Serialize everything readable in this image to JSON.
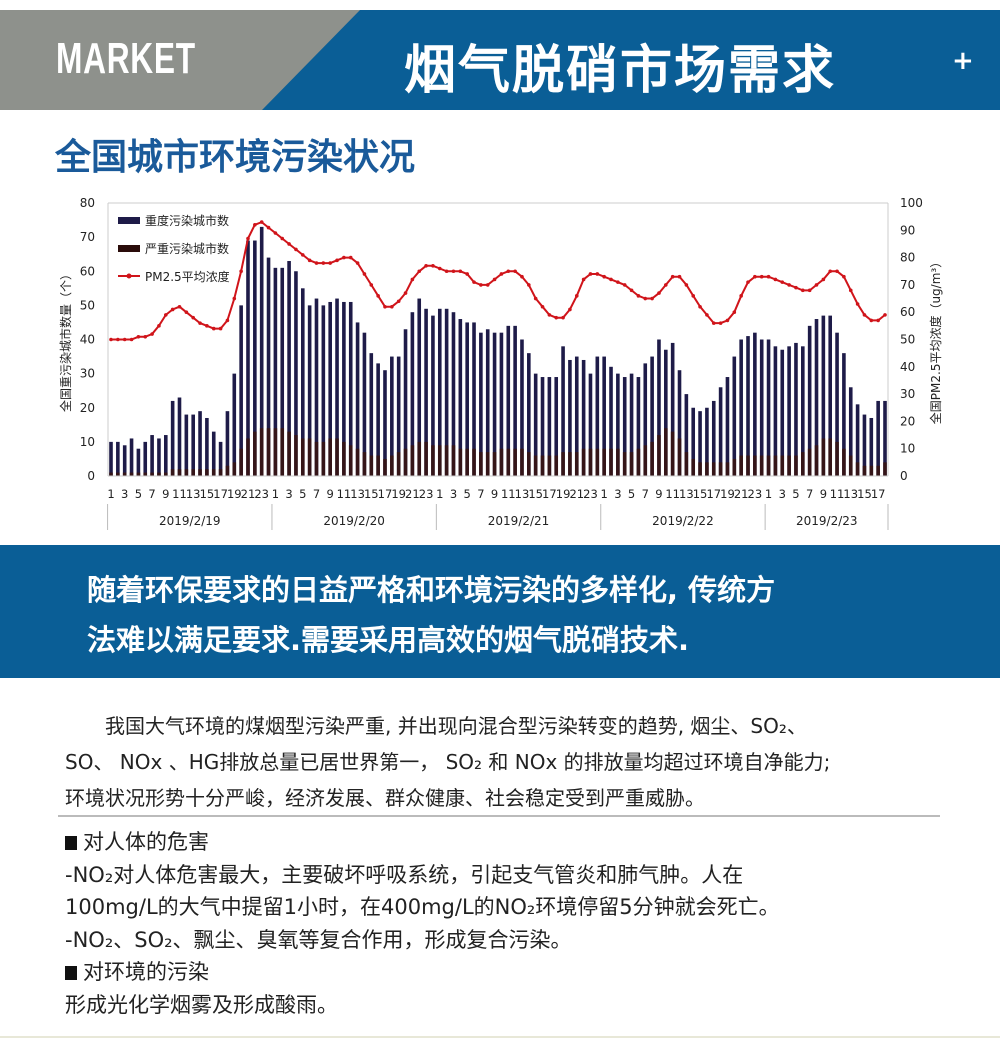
{
  "header": {
    "market_label": "MARKET",
    "title": "烟气脱硝市场需求",
    "plus_icon": "plus"
  },
  "subtitle": "全国城市环境污染状况",
  "colors": {
    "brand_blue": "#0a5e96",
    "gray": "#8e918c",
    "heavy_bar": "#1e1b48",
    "severe_bar": "#3a1410",
    "pm25_line": "#d0141a"
  },
  "chart_data": {
    "type": "bar+line",
    "ylabel_left": "全国重污染城市数量（个）",
    "ylabel_right": "全国PM2.5平均浓度（ug/m³）",
    "ylim_left": [
      0,
      80
    ],
    "ylim_right": [
      0,
      100
    ],
    "yticks_left": [
      "0",
      "10",
      "20",
      "30",
      "40",
      "50",
      "60",
      "70",
      "80"
    ],
    "yticks_right": [
      "0",
      "10",
      "20",
      "30",
      "40",
      "50",
      "60",
      "70",
      "80",
      "90",
      "100"
    ],
    "legend_placement": "top-left",
    "legend": [
      "重度污染城市数",
      "严重污染城市数",
      "PM2.5平均浓度"
    ],
    "days": [
      {
        "date": "2019/2/19",
        "hours": 24
      },
      {
        "date": "2019/2/20",
        "hours": 24
      },
      {
        "date": "2019/2/21",
        "hours": 24
      },
      {
        "date": "2019/2/22",
        "hours": 24
      },
      {
        "date": "2019/2/23",
        "hours": 18
      }
    ],
    "series": [
      {
        "name": "重度污染城市数",
        "type": "bar",
        "axis": "left",
        "values": [
          10,
          10,
          9,
          11,
          8,
          10,
          12,
          11,
          12,
          22,
          23,
          18,
          18,
          19,
          17,
          13,
          10,
          19,
          30,
          50,
          69,
          69,
          73,
          64,
          61,
          61,
          63,
          60,
          55,
          50,
          52,
          50,
          51,
          52,
          51,
          51,
          45,
          42,
          36,
          33,
          31,
          35,
          35,
          43,
          48,
          52,
          49,
          47,
          49,
          49,
          48,
          46,
          45,
          45,
          42,
          43,
          42,
          42,
          44,
          44,
          40,
          36,
          30,
          29,
          29,
          29,
          38,
          34,
          35,
          34,
          30,
          35,
          35,
          32,
          30,
          29,
          30,
          29,
          33,
          35,
          40,
          37,
          39,
          31,
          24,
          20,
          19,
          20,
          22,
          26,
          29,
          35,
          40,
          41,
          42,
          40,
          40,
          38,
          37,
          38,
          39,
          38,
          44,
          46,
          47,
          47,
          42,
          36,
          26,
          21,
          18,
          17,
          22,
          22
        ]
      },
      {
        "name": "严重污染城市数",
        "type": "bar",
        "axis": "left",
        "values": [
          1,
          1,
          1,
          1,
          1,
          1,
          1,
          1,
          1,
          2,
          2,
          2,
          2,
          2,
          2,
          2,
          2,
          3,
          4,
          8,
          11,
          13,
          14,
          14,
          14,
          14,
          13,
          12,
          11,
          11,
          10,
          10,
          11,
          11,
          10,
          9,
          8,
          7,
          6,
          6,
          5,
          6,
          7,
          8,
          9,
          10,
          10,
          9,
          9,
          9,
          9,
          8,
          8,
          8,
          7,
          7,
          7,
          8,
          8,
          8,
          8,
          7,
          6,
          6,
          6,
          6,
          7,
          7,
          7,
          8,
          8,
          8,
          8,
          8,
          8,
          7,
          7,
          8,
          9,
          10,
          12,
          14,
          13,
          11,
          7,
          5,
          4,
          4,
          4,
          4,
          4,
          5,
          6,
          6,
          6,
          6,
          6,
          6,
          6,
          6,
          6,
          7,
          8,
          9,
          11,
          11,
          10,
          8,
          6,
          4,
          3,
          3,
          3,
          4
        ]
      },
      {
        "name": "PM2.5平均浓度",
        "type": "line",
        "axis": "right",
        "values": [
          50,
          50,
          50,
          50,
          51,
          51,
          52,
          55,
          59,
          61,
          62,
          60,
          58,
          56,
          55,
          54,
          54,
          57,
          65,
          75,
          87,
          92,
          93,
          91,
          89,
          87,
          85,
          83,
          81,
          79,
          78,
          78,
          78,
          79,
          80,
          80,
          78,
          74,
          70,
          66,
          62,
          62,
          64,
          67,
          72,
          75,
          77,
          77,
          76,
          75,
          75,
          75,
          74,
          71,
          70,
          70,
          72,
          74,
          75,
          75,
          73,
          70,
          65,
          62,
          59,
          58,
          58,
          61,
          66,
          72,
          74,
          74,
          73,
          72,
          71,
          70,
          68,
          66,
          65,
          65,
          67,
          70,
          73,
          73,
          70,
          66,
          62,
          59,
          56,
          56,
          57,
          60,
          66,
          71,
          73,
          73,
          73,
          72,
          71,
          70,
          69,
          68,
          68,
          70,
          72,
          75,
          75,
          73,
          68,
          63,
          59,
          57,
          57,
          59
        ]
      }
    ]
  },
  "band": {
    "line1": "随着环保要求的日益严格和环境污染的多样化, 传统方",
    "line2": "法难以满足要求.需要采用高效的烟气脱硝技术."
  },
  "paragraph": [
    "　　我国大气环境的煤烟型污染严重, 并出现向混合型污染转变的趋势, 烟尘、SO₂、",
    "SO、 NOx 、HG排放总量已居世界第一， SO₂ 和 NOx 的排放量均超过环境自净能力;",
    "环境状况形势十分严峻，经济发展、群众健康、社会稳定受到严重威胁。"
  ],
  "sections": [
    {
      "heading": "对人体的危害",
      "lines": [
        "-NO₂对人体危害最大，主要破坏呼吸系统，引起支气管炎和肺气肿。人在",
        "100mg/L的大气中提留1小时，在400mg/L的NO₂环境停留5分钟就会死亡。",
        "-NO₂、SO₂、飘尘、臭氧等复合作用，形成复合污染。"
      ]
    },
    {
      "heading": "对环境的污染",
      "lines": [
        "形成光化学烟雾及形成酸雨。"
      ]
    }
  ]
}
